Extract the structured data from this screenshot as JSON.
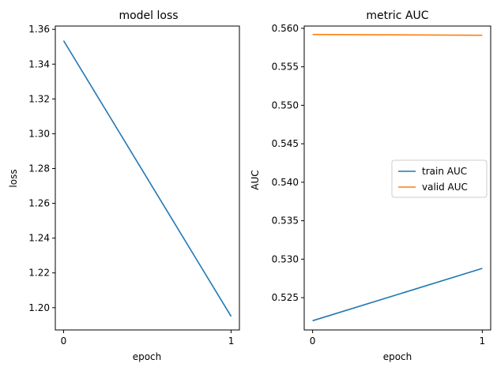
{
  "chart_data": [
    {
      "type": "line",
      "title": "model loss",
      "xlabel": "epoch",
      "ylabel": "loss",
      "x": [
        0,
        1
      ],
      "x_ticks": [
        "0",
        "1"
      ],
      "ylim": [
        1.1872,
        1.3619
      ],
      "y_ticks": [
        "1.20",
        "1.22",
        "1.24",
        "1.26",
        "1.28",
        "1.30",
        "1.32",
        "1.34",
        "1.36"
      ],
      "series": [
        {
          "values": [
            1.3535,
            1.195
          ],
          "color": "#1f77b4"
        }
      ],
      "legend": null
    },
    {
      "type": "line",
      "title": "metric AUC",
      "xlabel": "epoch",
      "ylabel": "AUC",
      "x": [
        0,
        1
      ],
      "x_ticks": [
        "0",
        "1"
      ],
      "ylim": [
        0.5208,
        0.5603
      ],
      "y_ticks": [
        "0.525",
        "0.530",
        "0.535",
        "0.540",
        "0.545",
        "0.550",
        "0.555",
        "0.560"
      ],
      "series": [
        {
          "name": "train AUC",
          "values": [
            0.522,
            0.5288
          ],
          "color": "#1f77b4"
        },
        {
          "name": "valid AUC",
          "values": [
            0.5592,
            0.5591
          ],
          "color": "#ff7f0e"
        }
      ],
      "legend": "center-right"
    }
  ]
}
